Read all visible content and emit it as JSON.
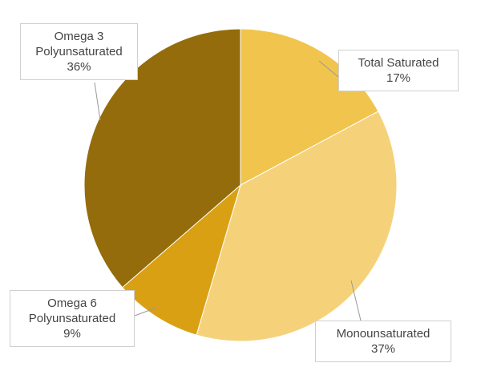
{
  "chart_data": {
    "type": "pie",
    "categories": [
      "Total Saturated",
      "Monounsaturated",
      "Omega 6 Polyunsaturated",
      "Omega 3 Polyunsaturated"
    ],
    "values": [
      17,
      37,
      9,
      36
    ],
    "value_labels": [
      "17%",
      "37%",
      "9%",
      "36%"
    ],
    "colors": [
      "#f1c44e",
      "#f5d27a",
      "#d9a013",
      "#946c0b"
    ]
  }
}
